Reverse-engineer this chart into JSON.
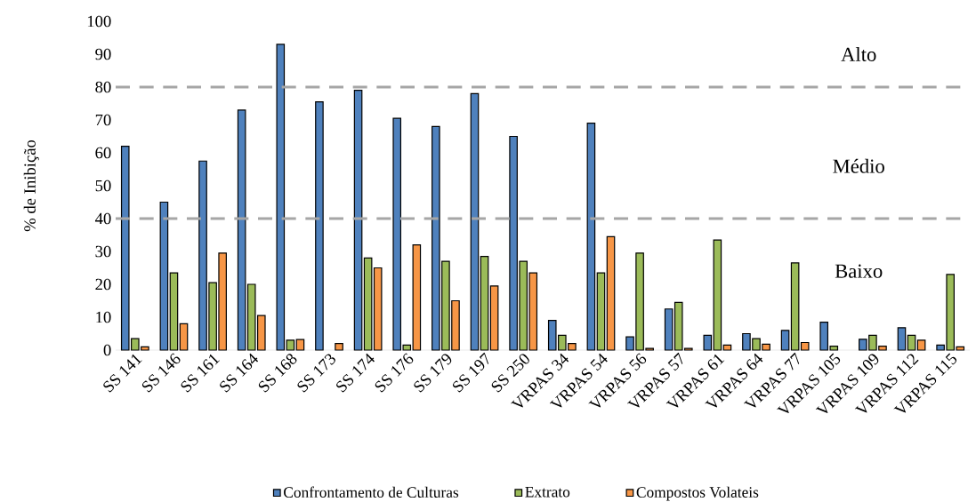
{
  "chart_data": {
    "type": "bar",
    "ylabel": "% de Inibição",
    "categories": [
      "SS 141",
      "SS 146",
      "SS 161",
      "SS 164",
      "SS 168",
      "SS 173",
      "SS 174",
      "SS 176",
      "SS 179",
      "SS 197",
      "SS 250",
      "VRPAS 34",
      "VRPAS 54",
      "VRPAS 56",
      "VRPAS 57",
      "VRPAS 61",
      "VRPAS 64",
      "VRPAS 77",
      "VRPAS 105",
      "VRPAS 109",
      "VRPAS 112",
      "VRPAS 115"
    ],
    "series": [
      {
        "name": "Confrontamento de Culturas",
        "color": "#4f81bd",
        "values": [
          62,
          45,
          57.5,
          73,
          93,
          75.5,
          79,
          70.5,
          68,
          78,
          65,
          9,
          69,
          4,
          12.5,
          4.5,
          5,
          6,
          8.5,
          3.3,
          6.8,
          1.5
        ]
      },
      {
        "name": "Extrato",
        "color": "#9bbb59",
        "values": [
          3.5,
          23.5,
          20.5,
          20,
          3,
          null,
          28,
          1.5,
          27,
          28.5,
          27,
          4.5,
          23.5,
          29.5,
          14.5,
          33.5,
          3.5,
          26.5,
          1.2,
          4.5,
          4.5,
          23
        ]
      },
      {
        "name": "Compostos Volateis",
        "color": "#f79646",
        "values": [
          1,
          8,
          29.5,
          10.5,
          3.2,
          2,
          25,
          32,
          15,
          19.5,
          23.5,
          2,
          34.5,
          0.5,
          0.5,
          1.5,
          1.8,
          2.3,
          null,
          1.2,
          3,
          1
        ]
      }
    ],
    "ylim": [
      0,
      100
    ],
    "yticks": [
      0,
      10,
      20,
      30,
      40,
      50,
      60,
      70,
      80,
      90,
      100
    ],
    "ref_lines": [
      {
        "axis": "y",
        "value": 80,
        "color": "#a6a6a6",
        "line_style": "dashed"
      },
      {
        "axis": "y",
        "value": 40,
        "color": "#a6a6a6",
        "line_style": "dashed"
      }
    ],
    "annotations": [
      "Alto",
      "Médio",
      "Baixo"
    ],
    "grid": false,
    "legend": "bottom"
  }
}
